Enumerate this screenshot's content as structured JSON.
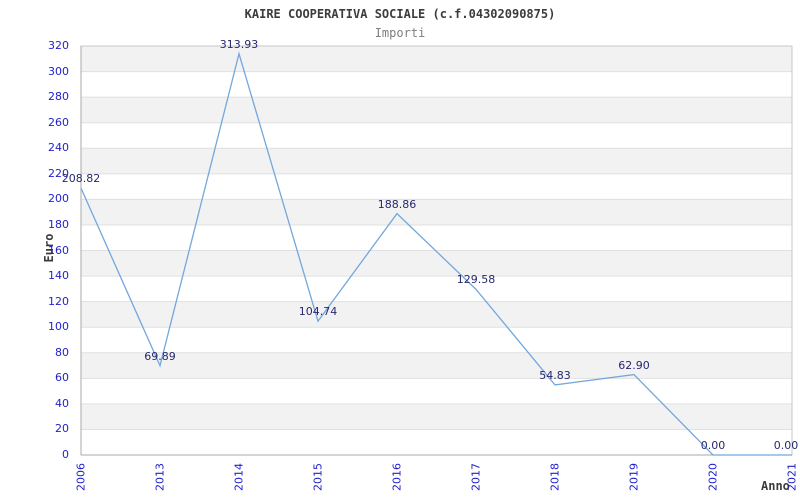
{
  "chart_data": {
    "type": "line",
    "title": "KAIRE COOPERATIVA SOCIALE (c.f.04302090875)",
    "subtitle": "Importi",
    "xlabel": "Anno",
    "ylabel": "Euro",
    "categories": [
      "2006",
      "2013",
      "2014",
      "2015",
      "2016",
      "2017",
      "2018",
      "2019",
      "2020",
      "2021"
    ],
    "values": [
      208.82,
      69.89,
      313.93,
      104.74,
      188.86,
      129.58,
      54.83,
      62.9,
      0,
      0
    ],
    "point_labels": [
      "208.82",
      "69.89",
      "313.93",
      "104.74",
      "188.86",
      "129.58",
      "54.83",
      "62.90",
      "0.00",
      "0.00"
    ],
    "ylim": [
      0,
      320
    ],
    "ytick_step": 20,
    "grid": "horizontal-bands",
    "legend": "none",
    "colors": {
      "line": "#74a7dc",
      "tick_label": "#2222cc",
      "point_label": "#28286e",
      "band": "#f2f2f2",
      "gridline": "#e0e0e0",
      "border": "#c8c8c8",
      "axis": "#a9a9a9",
      "title": "#3c3c3c",
      "subtitle": "#808080"
    }
  }
}
